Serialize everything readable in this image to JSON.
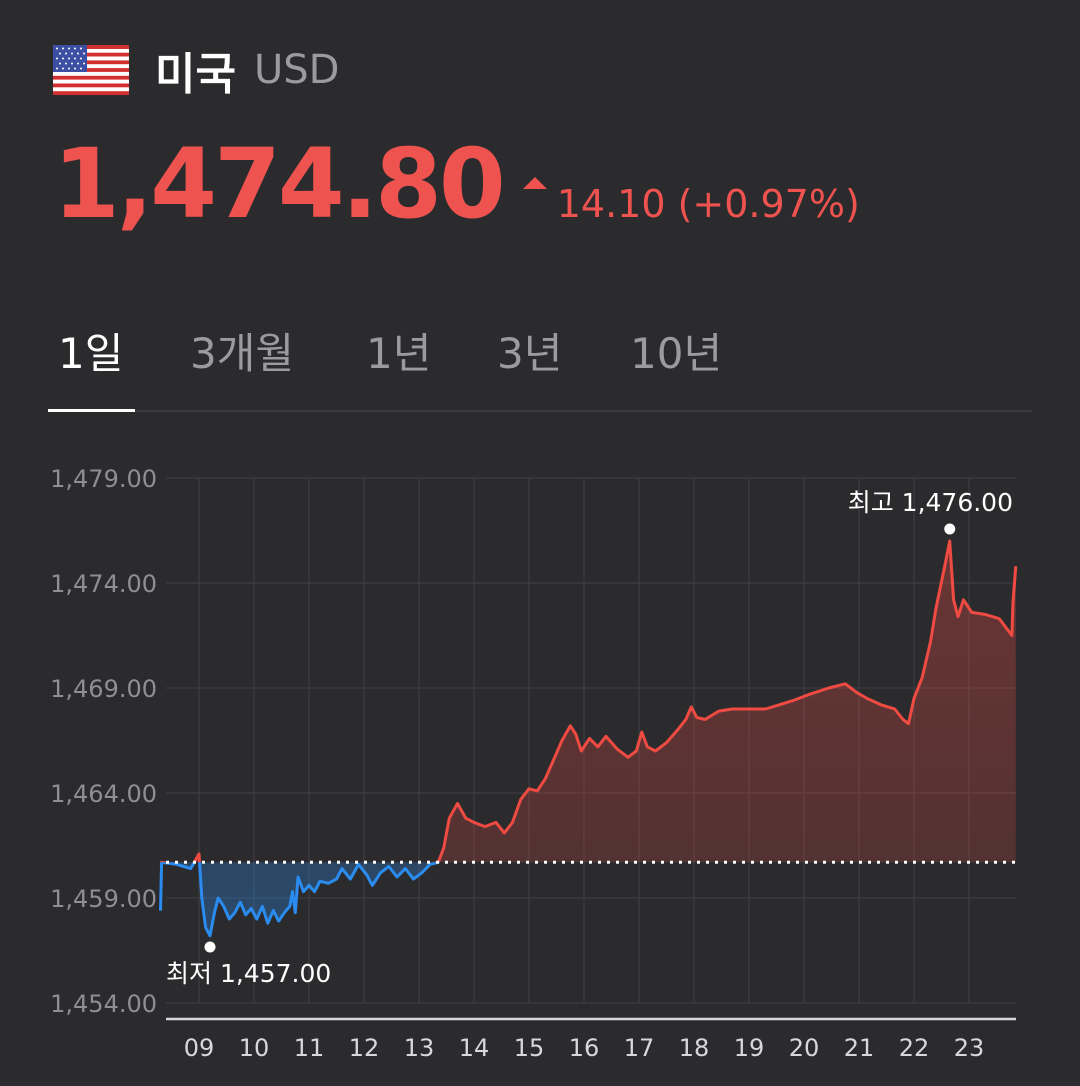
{
  "header": {
    "country": "미국",
    "currency": "USD",
    "flag_icon": "us-flag-icon"
  },
  "quote": {
    "price": "1,474.80",
    "change": "14.10 (+0.97%)",
    "direction": "up",
    "color_up": "#ef5350"
  },
  "tabs": [
    {
      "label": "1일",
      "active": true
    },
    {
      "label": "3개월",
      "active": false
    },
    {
      "label": "1년",
      "active": false
    },
    {
      "label": "3년",
      "active": false
    },
    {
      "label": "10년",
      "active": false
    }
  ],
  "chart_data": {
    "type": "line",
    "y_tick_labels": [
      "1,479.00",
      "1,474.00",
      "1,469.00",
      "1,464.00",
      "1,459.00",
      "1,454.00"
    ],
    "y_ticks": [
      1479,
      1474,
      1469,
      1464,
      1459,
      1454
    ],
    "ylim": [
      1454,
      1479
    ],
    "x_tick_labels": [
      "09",
      "10",
      "11",
      "12",
      "13",
      "14",
      "15",
      "16",
      "17",
      "18",
      "19",
      "20",
      "21",
      "22",
      "23"
    ],
    "xlim": [
      8.3,
      23.85
    ],
    "reference_value": 1460.7,
    "high_label": "최고 1,476.00",
    "low_label": "최저 1,457.00",
    "high": {
      "x": 22.65,
      "y": 1476.0
    },
    "low": {
      "x": 9.2,
      "y": 1457.0
    },
    "series": [
      {
        "color_below": "#2b8cf0",
        "color_above": "#ef4b43",
        "points": [
          [
            8.3,
            1458.4
          ],
          [
            8.32,
            1460.7
          ],
          [
            8.6,
            1460.6
          ],
          [
            8.85,
            1460.4
          ],
          [
            9.0,
            1461.1
          ],
          [
            9.05,
            1459.0
          ],
          [
            9.12,
            1457.6
          ],
          [
            9.2,
            1457.2
          ],
          [
            9.28,
            1458.3
          ],
          [
            9.35,
            1459.0
          ],
          [
            9.45,
            1458.6
          ],
          [
            9.55,
            1458.0
          ],
          [
            9.65,
            1458.3
          ],
          [
            9.75,
            1458.8
          ],
          [
            9.85,
            1458.2
          ],
          [
            9.95,
            1458.5
          ],
          [
            10.05,
            1458.0
          ],
          [
            10.15,
            1458.6
          ],
          [
            10.25,
            1457.8
          ],
          [
            10.35,
            1458.4
          ],
          [
            10.45,
            1457.9
          ],
          [
            10.55,
            1458.3
          ],
          [
            10.65,
            1458.6
          ],
          [
            10.7,
            1459.3
          ],
          [
            10.75,
            1458.3
          ],
          [
            10.8,
            1460.0
          ],
          [
            10.9,
            1459.3
          ],
          [
            11.0,
            1459.6
          ],
          [
            11.1,
            1459.3
          ],
          [
            11.2,
            1459.8
          ],
          [
            11.35,
            1459.7
          ],
          [
            11.5,
            1459.9
          ],
          [
            11.6,
            1460.4
          ],
          [
            11.75,
            1459.9
          ],
          [
            11.9,
            1460.6
          ],
          [
            12.05,
            1460.1
          ],
          [
            12.15,
            1459.6
          ],
          [
            12.3,
            1460.2
          ],
          [
            12.45,
            1460.5
          ],
          [
            12.6,
            1460.0
          ],
          [
            12.75,
            1460.4
          ],
          [
            12.9,
            1459.9
          ],
          [
            13.05,
            1460.2
          ],
          [
            13.2,
            1460.6
          ],
          [
            13.35,
            1460.7
          ],
          [
            13.45,
            1461.4
          ],
          [
            13.55,
            1462.8
          ],
          [
            13.7,
            1463.5
          ],
          [
            13.85,
            1462.8
          ],
          [
            14.0,
            1462.6
          ],
          [
            14.2,
            1462.4
          ],
          [
            14.4,
            1462.6
          ],
          [
            14.55,
            1462.1
          ],
          [
            14.7,
            1462.6
          ],
          [
            14.85,
            1463.7
          ],
          [
            15.0,
            1464.2
          ],
          [
            15.15,
            1464.1
          ],
          [
            15.3,
            1464.7
          ],
          [
            15.45,
            1465.6
          ],
          [
            15.6,
            1466.5
          ],
          [
            15.75,
            1467.2
          ],
          [
            15.85,
            1466.8
          ],
          [
            15.95,
            1466.0
          ],
          [
            16.1,
            1466.6
          ],
          [
            16.25,
            1466.2
          ],
          [
            16.4,
            1466.7
          ],
          [
            16.6,
            1466.1
          ],
          [
            16.8,
            1465.7
          ],
          [
            16.95,
            1466.0
          ],
          [
            17.05,
            1466.9
          ],
          [
            17.15,
            1466.2
          ],
          [
            17.3,
            1466.0
          ],
          [
            17.5,
            1466.4
          ],
          [
            17.7,
            1467.0
          ],
          [
            17.85,
            1467.5
          ],
          [
            17.95,
            1468.1
          ],
          [
            18.05,
            1467.6
          ],
          [
            18.2,
            1467.5
          ],
          [
            18.45,
            1467.9
          ],
          [
            18.7,
            1468.0
          ],
          [
            19.0,
            1468.0
          ],
          [
            19.3,
            1468.0
          ],
          [
            19.55,
            1468.2
          ],
          [
            19.8,
            1468.4
          ],
          [
            20.1,
            1468.7
          ],
          [
            20.45,
            1469.0
          ],
          [
            20.75,
            1469.2
          ],
          [
            20.95,
            1468.8
          ],
          [
            21.15,
            1468.5
          ],
          [
            21.4,
            1468.2
          ],
          [
            21.65,
            1468.0
          ],
          [
            21.8,
            1467.5
          ],
          [
            21.9,
            1467.3
          ],
          [
            22.0,
            1468.5
          ],
          [
            22.15,
            1469.5
          ],
          [
            22.3,
            1471.2
          ],
          [
            22.4,
            1472.8
          ],
          [
            22.55,
            1474.7
          ],
          [
            22.65,
            1476.0
          ],
          [
            22.72,
            1473.2
          ],
          [
            22.8,
            1472.4
          ],
          [
            22.9,
            1473.2
          ],
          [
            23.05,
            1472.6
          ],
          [
            23.3,
            1472.5
          ],
          [
            23.55,
            1472.3
          ],
          [
            23.78,
            1471.5
          ],
          [
            23.8,
            1473.1
          ],
          [
            23.85,
            1474.8
          ]
        ]
      }
    ]
  }
}
